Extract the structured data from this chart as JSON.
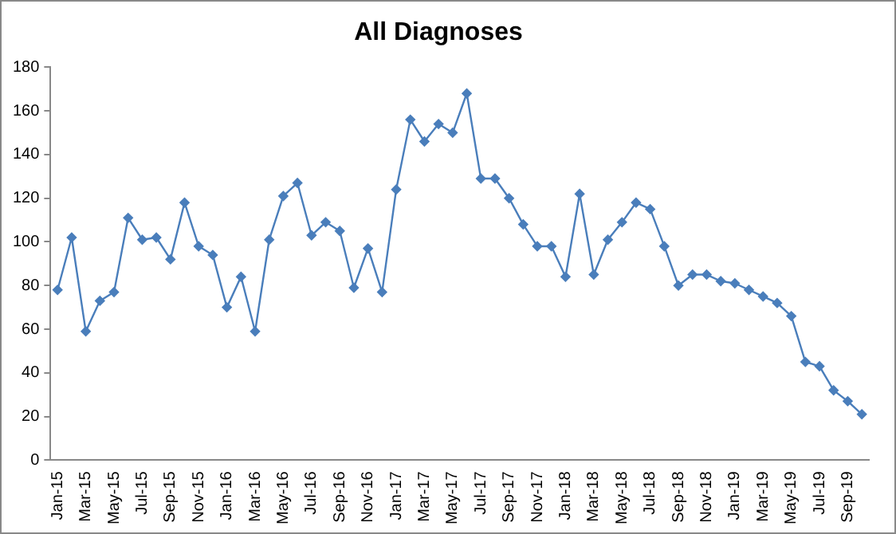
{
  "chart_data": {
    "type": "line",
    "title": "All Diagnoses",
    "categories": [
      "Jan-15",
      null,
      "Mar-15",
      null,
      "May-15",
      null,
      "Jul-15",
      null,
      "Sep-15",
      null,
      "Nov-15",
      null,
      "Jan-16",
      null,
      "Mar-16",
      null,
      "May-16",
      null,
      "Jul-16",
      null,
      "Sep-16",
      null,
      "Nov-16",
      null,
      "Jan-17",
      null,
      "Mar-17",
      null,
      "May-17",
      null,
      "Jul-17",
      null,
      "Sep-17",
      null,
      "Nov-17",
      null,
      "Jan-18",
      null,
      "Mar-18",
      null,
      "May-18",
      null,
      "Jul-18",
      null,
      "Sep-18",
      null,
      "Nov-18",
      null,
      "Jan-19",
      null,
      "Mar-19",
      null,
      "May-19",
      null,
      "Jul-19",
      null,
      "Sep-19",
      null
    ],
    "series": [
      {
        "color": "#4a7ebb",
        "values": [
          78,
          102,
          59,
          73,
          77,
          111,
          101,
          102,
          92,
          118,
          98,
          94,
          70,
          84,
          59,
          101,
          121,
          127,
          103,
          109,
          105,
          79,
          97,
          77,
          124,
          156,
          146,
          154,
          150,
          168,
          129,
          129,
          120,
          108,
          98,
          98,
          84,
          122,
          85,
          101,
          109,
          118,
          115,
          98,
          80,
          85,
          85,
          82,
          81,
          78,
          75,
          72,
          66,
          45,
          43,
          32,
          27,
          21
        ]
      }
    ],
    "ylim": [
      0,
      180
    ],
    "yticks": [
      0,
      20,
      40,
      60,
      80,
      100,
      120,
      140,
      160,
      180
    ],
    "grid": false,
    "legend": false,
    "marker": "diamond",
    "line_style": "solid"
  }
}
